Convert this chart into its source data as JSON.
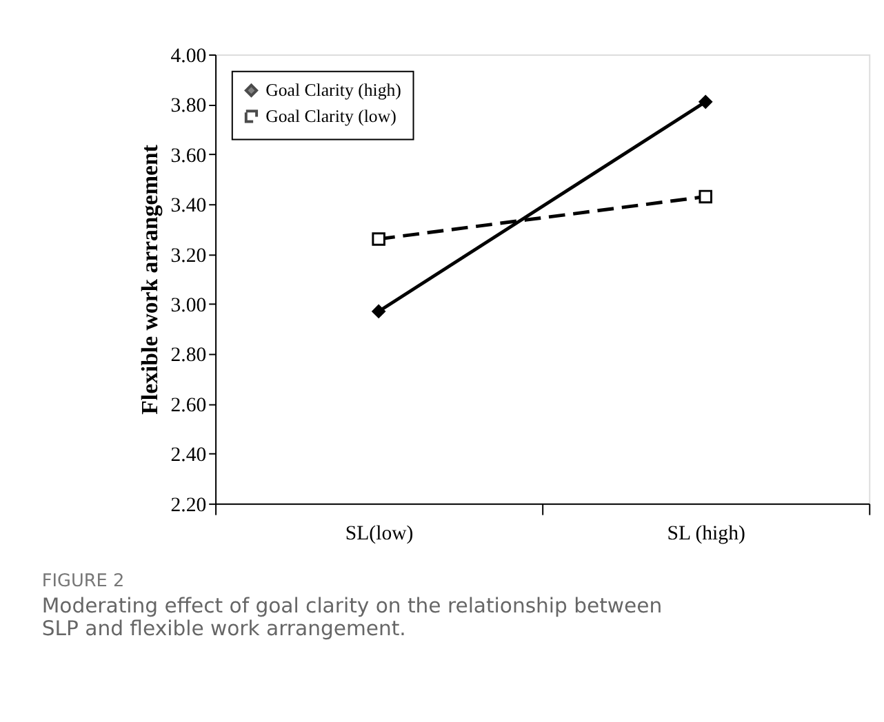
{
  "chart_data": {
    "type": "line",
    "ylabel": "Flexible work arrangement",
    "categories": [
      "SL(low)",
      "SL (high)"
    ],
    "series": [
      {
        "name": "Goal Clarity (high)",
        "color": "#000000",
        "values": [
          2.97,
          3.81
        ],
        "marker": "diamond",
        "line_style": "solid"
      },
      {
        "name": "Goal Clarity (low)",
        "color": "#000000",
        "values": [
          3.26,
          3.43
        ],
        "marker": "square",
        "line_style": "dashed"
      }
    ],
    "ylim": [
      2.2,
      4.0
    ],
    "yticks": [
      {
        "value": 2.2,
        "label": "2.20"
      },
      {
        "value": 2.4,
        "label": "2.40"
      },
      {
        "value": 2.6,
        "label": "2.60"
      },
      {
        "value": 2.8,
        "label": "2.80"
      },
      {
        "value": 3.0,
        "label": "3.00"
      },
      {
        "value": 3.2,
        "label": "3.20"
      },
      {
        "value": 3.4,
        "label": "3.40"
      },
      {
        "value": 3.6,
        "label": "3.60"
      },
      {
        "value": 3.8,
        "label": "3.80"
      },
      {
        "value": 4.0,
        "label": "4.00"
      }
    ],
    "grid": false,
    "legend": "top left",
    "annotations": [
      "FIGURE 2",
      "Moderating effect of goal clarity on the relationship between SLP and flexible work arrangement."
    ]
  }
}
